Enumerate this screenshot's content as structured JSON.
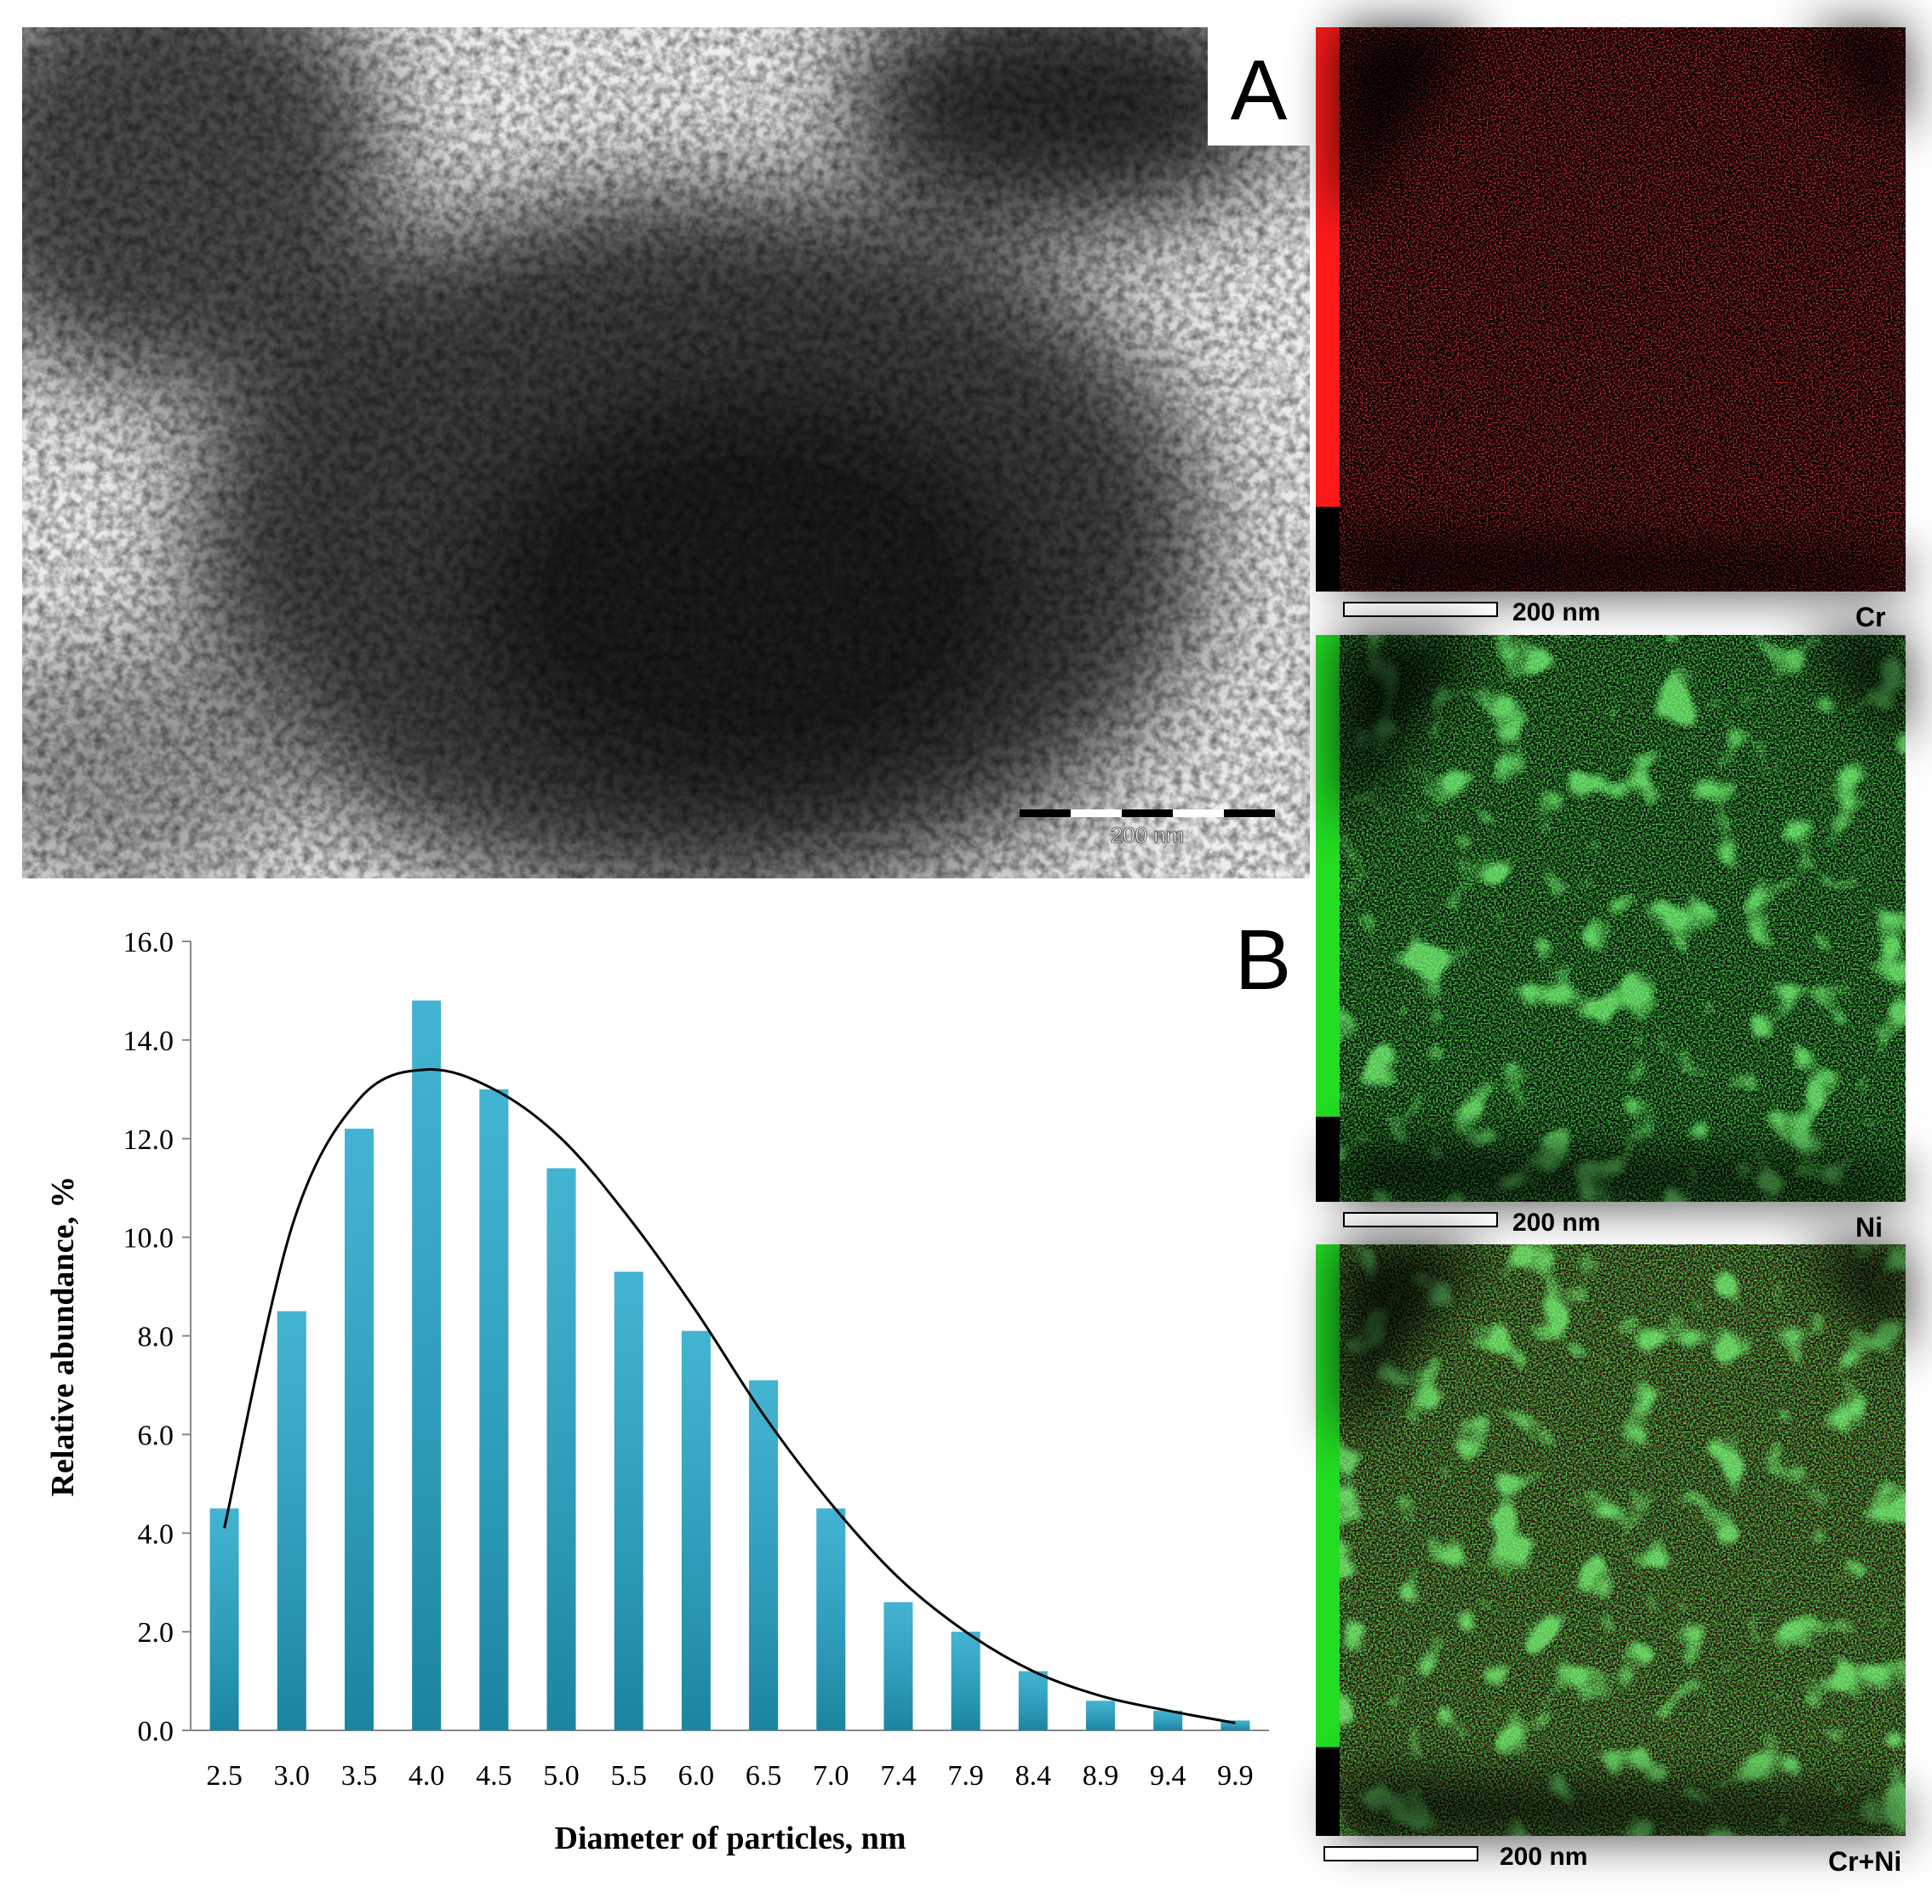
{
  "panel_a": {
    "label": "A",
    "scale_bar": "200 nm"
  },
  "maps": [
    {
      "scale_bar": "200 nm",
      "element": "Cr"
    },
    {
      "scale_bar": "200 nm",
      "element": "Ni"
    },
    {
      "scale_bar": "200 nm",
      "element": "Cr+Ni"
    }
  ],
  "chart_data": {
    "type": "bar",
    "label": "B",
    "x_label": "Diameter of particles, nm",
    "y_label": "Relative abundance, %",
    "categories": [
      "2.5",
      "3.0",
      "3.5",
      "4.0",
      "4.5",
      "5.0",
      "5.5",
      "6.0",
      "6.5",
      "7.0",
      "7.4",
      "7.9",
      "8.4",
      "8.9",
      "9.4",
      "9.9"
    ],
    "series": [
      {
        "type": "bar",
        "color": "#21a6c9",
        "values": [
          4.5,
          8.5,
          12.2,
          14.8,
          13.0,
          11.4,
          9.3,
          8.1,
          7.1,
          4.5,
          2.6,
          2.0,
          1.2,
          0.6,
          0.4,
          0.2
        ]
      },
      {
        "type": "line",
        "color": "#000000",
        "values": [
          4.1,
          10.2,
          12.8,
          13.4,
          13.0,
          12.0,
          10.4,
          8.5,
          6.4,
          4.6,
          3.1,
          2.0,
          1.2,
          0.7,
          0.4,
          0.15
        ]
      }
    ],
    "ylim": [
      0,
      16
    ],
    "yticks": [
      {
        "value": 0,
        "label": "0.0"
      },
      {
        "value": 2,
        "label": "2.0"
      },
      {
        "value": 4,
        "label": "4.0"
      },
      {
        "value": 6,
        "label": "6.0"
      },
      {
        "value": 8,
        "label": "8.0"
      },
      {
        "value": 10,
        "label": "10.0"
      },
      {
        "value": 12,
        "label": "12.0"
      },
      {
        "value": 14,
        "label": "14.0"
      },
      {
        "value": 16,
        "label": "16.0"
      }
    ]
  }
}
